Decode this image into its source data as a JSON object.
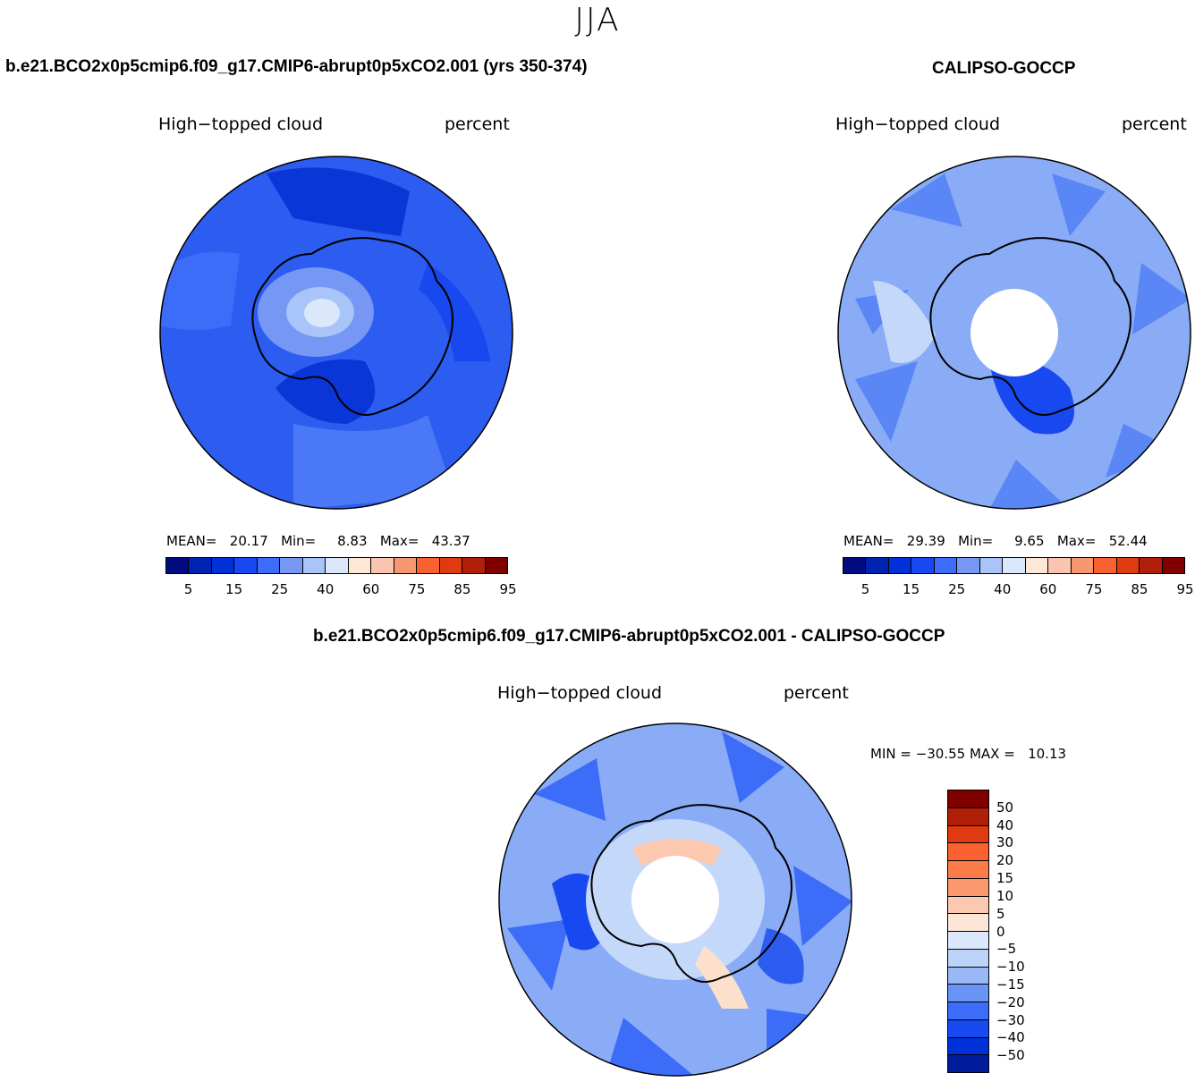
{
  "figure": {
    "season": "JJA"
  },
  "panels": [
    {
      "title": "b.e21.BCO2x0p5cmip6.f09_g17.CMIP6-abrupt0p5xCO2.001 (yrs 350-374)",
      "variable": "High−topped cloud",
      "units": "percent",
      "stats": {
        "mean_label": "MEAN=",
        "mean": "20.17",
        "min_label": "Min=",
        "min": "8.83",
        "max_label": "Max=",
        "max": "43.37"
      },
      "colorbar_ticks": [
        "5",
        "15",
        "25",
        "40",
        "60",
        "75",
        "85",
        "95"
      ]
    },
    {
      "title": "CALIPSO-GOCCP",
      "variable": "High−topped cloud",
      "units": "percent",
      "stats": {
        "mean_label": "MEAN=",
        "mean": "29.39",
        "min_label": "Min=",
        "min": "9.65",
        "max_label": "Max=",
        "max": "52.44"
      },
      "colorbar_ticks": [
        "5",
        "15",
        "25",
        "40",
        "60",
        "75",
        "85",
        "95"
      ]
    },
    {
      "title": "b.e21.BCO2x0p5cmip6.f09_g17.CMIP6-abrupt0p5xCO2.001 - CALIPSO-GOCCP",
      "variable": "High−topped cloud",
      "units": "percent",
      "stats_text": "MIN = −30.55 MAX =   10.13",
      "colorbar_ticks": [
        "50",
        "40",
        "30",
        "20",
        "15",
        "10",
        "5",
        "0",
        "−5",
        "−10",
        "−15",
        "−20",
        "−30",
        "−40",
        "−50"
      ]
    }
  ],
  "colors": {
    "abs_scale": [
      "#000c80",
      "#0022b0",
      "#0030d8",
      "#1848f0",
      "#3c6cf8",
      "#7698f4",
      "#a8c4f8",
      "#dbe8fb",
      "#fde8d8",
      "#f9c4b0",
      "#f79870",
      "#f96230",
      "#e03a10",
      "#b02008",
      "#800000"
    ],
    "diff_scale": [
      "#800000",
      "#b02008",
      "#e03a10",
      "#f96230",
      "#fb7c48",
      "#fb9870",
      "#fdc8b0",
      "#fde6d8",
      "#dbe8fb",
      "#bcd4fa",
      "#98b8f8",
      "#6a94f4",
      "#3c6cf8",
      "#1848f0",
      "#0030d8",
      "#001c9c"
    ],
    "map_fill_a": "#3060f0",
    "map_fill_b": "#8aacf6",
    "map_fill_c": "#6a94f4"
  }
}
